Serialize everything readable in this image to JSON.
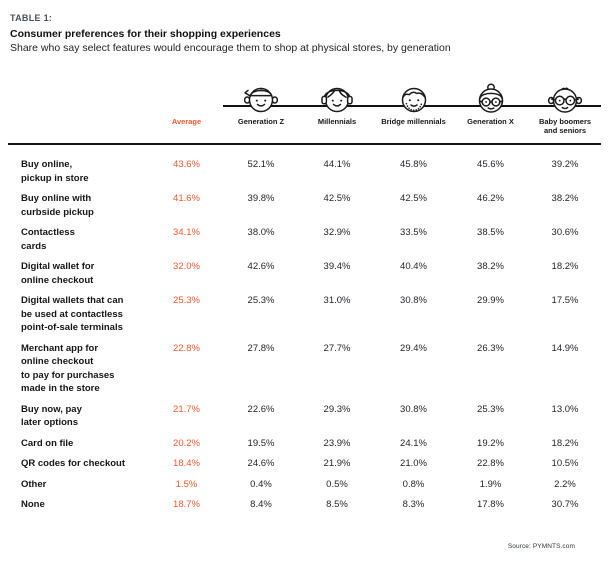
{
  "header": {
    "table_label": "TABLE 1:",
    "title": "Consumer preferences for their shopping experiences",
    "subtitle": "Share who say select features would encourage them to shop at physical stores, by generation"
  },
  "colors": {
    "accent_orange": "#f4582f",
    "rule_black": "#141414"
  },
  "table": {
    "columns": {
      "average_label": "Average",
      "generations": [
        {
          "label": "Generation Z",
          "icon": "generation-z-face-icon"
        },
        {
          "label": "Millennials",
          "icon": "millennials-face-icon"
        },
        {
          "label": "Bridge millennials",
          "icon": "bridge-millennials-face-icon"
        },
        {
          "label": "Generation X",
          "icon": "generation-x-face-icon"
        },
        {
          "label": "Baby boomers\nand seniors",
          "icon": "baby-boomers-face-icon"
        }
      ]
    },
    "rows": [
      {
        "label": "Buy online,\npickup in store",
        "values": [
          "43.6%",
          "52.1%",
          "44.1%",
          "45.8%",
          "45.6%",
          "39.2%"
        ]
      },
      {
        "label": "Buy online with\ncurbside pickup",
        "values": [
          "41.6%",
          "39.8%",
          "42.5%",
          "42.5%",
          "46.2%",
          "38.2%"
        ]
      },
      {
        "label": "Contactless\ncards",
        "values": [
          "34.1%",
          "38.0%",
          "32.9%",
          "33.5%",
          "38.5%",
          "30.6%"
        ]
      },
      {
        "label": "Digital wallet for\nonline checkout",
        "values": [
          "32.0%",
          "42.6%",
          "39.4%",
          "40.4%",
          "38.2%",
          "18.2%"
        ]
      },
      {
        "label": "Digital wallets that can\nbe used at contactless\npoint-of-sale terminals",
        "values": [
          "25.3%",
          "25.3%",
          "31.0%",
          "30.8%",
          "29.9%",
          "17.5%"
        ]
      },
      {
        "label": "Merchant app for\nonline checkout\nto pay for purchases\nmade in the store",
        "values": [
          "22.8%",
          "27.8%",
          "27.7%",
          "29.4%",
          "26.3%",
          "14.9%"
        ]
      },
      {
        "label": "Buy now, pay\nlater options",
        "values": [
          "21.7%",
          "22.6%",
          "29.3%",
          "30.8%",
          "25.3%",
          "13.0%"
        ]
      },
      {
        "label": "Card on file",
        "values": [
          "20.2%",
          "19.5%",
          "23.9%",
          "24.1%",
          "19.2%",
          "18.2%"
        ]
      },
      {
        "label": "QR codes for checkout",
        "values": [
          "18.4%",
          "24.6%",
          "21.9%",
          "21.0%",
          "22.8%",
          "10.5%"
        ]
      },
      {
        "label": "Other",
        "values": [
          "1.5%",
          "0.4%",
          "0.5%",
          "0.8%",
          "1.9%",
          "2.2%"
        ]
      },
      {
        "label": "None",
        "values": [
          "18.7%",
          "8.4%",
          "8.5%",
          "8.3%",
          "17.8%",
          "30.7%"
        ]
      }
    ]
  },
  "footer": {
    "source": "Source: PYMNTS.com"
  },
  "chart_data": {
    "type": "table",
    "title": "Consumer preferences for their shopping experiences",
    "subtitle": "Share who say select features would encourage them to shop at physical stores, by generation",
    "table_label": "TABLE 1:",
    "columns": [
      "Average",
      "Generation Z",
      "Millennials",
      "Bridge millennials",
      "Generation X",
      "Baby boomers and seniors"
    ],
    "row_labels": [
      "Buy online, pickup in store",
      "Buy online with curbside pickup",
      "Contactless cards",
      "Digital wallet for online checkout",
      "Digital wallets that can be used at contactless point-of-sale terminals",
      "Merchant app for online checkout to pay for purchases made in the store",
      "Buy now, pay later options",
      "Card on file",
      "QR codes for checkout",
      "Other",
      "None"
    ],
    "values_pct": [
      [
        43.6,
        52.1,
        44.1,
        45.8,
        45.6,
        39.2
      ],
      [
        41.6,
        39.8,
        42.5,
        42.5,
        46.2,
        38.2
      ],
      [
        34.1,
        38.0,
        32.9,
        33.5,
        38.5,
        30.6
      ],
      [
        32.0,
        42.6,
        39.4,
        40.4,
        38.2,
        18.2
      ],
      [
        25.3,
        25.3,
        31.0,
        30.8,
        29.9,
        17.5
      ],
      [
        22.8,
        27.8,
        27.7,
        29.4,
        26.3,
        14.9
      ],
      [
        21.7,
        22.6,
        29.3,
        30.8,
        25.3,
        13.0
      ],
      [
        20.2,
        19.5,
        23.9,
        24.1,
        19.2,
        18.2
      ],
      [
        18.4,
        24.6,
        21.9,
        21.0,
        22.8,
        10.5
      ],
      [
        1.5,
        0.4,
        0.5,
        0.8,
        1.9,
        2.2
      ],
      [
        18.7,
        8.4,
        8.5,
        8.3,
        17.8,
        30.7
      ]
    ],
    "average_column_color": "#f4582f",
    "source": "PYMNTS.com"
  }
}
